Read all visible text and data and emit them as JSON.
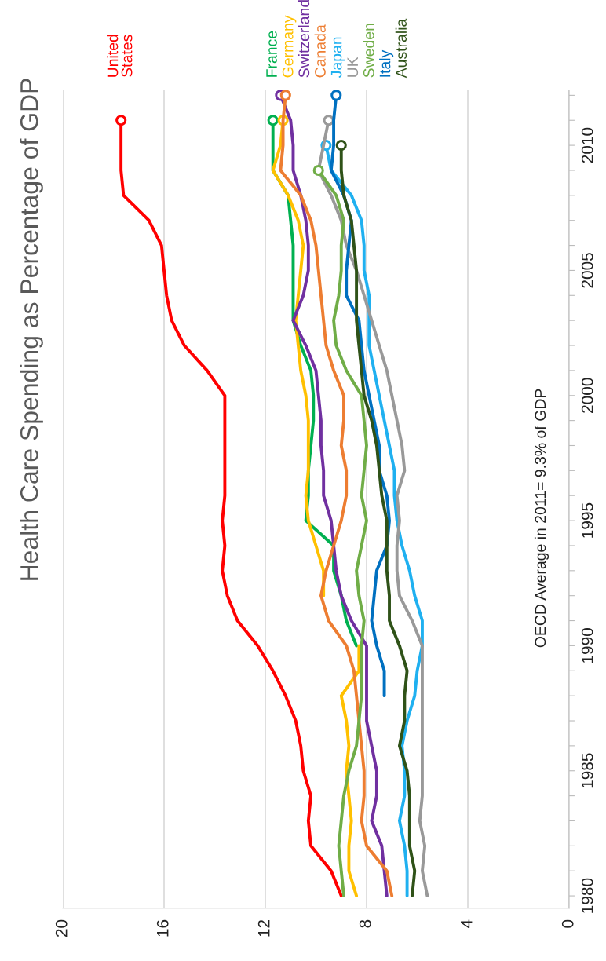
{
  "chart_data": {
    "type": "line",
    "title": "Health Care Spending as Percentage of GDP",
    "annotations": [
      "OECD Average in 2011= 9.3% of GDP"
    ],
    "orientation": "horizontal",
    "ylim": [
      1979.5,
      2012.2
    ],
    "yticks": [
      1980,
      {
        "value": 1981,
        "label": null
      },
      {
        "value": 1982,
        "label": null
      },
      {
        "value": 1983,
        "label": null
      },
      {
        "value": 1984,
        "label": null
      },
      1985,
      {
        "value": 1986,
        "label": null
      },
      {
        "value": 1987,
        "label": null
      },
      {
        "value": 1988,
        "label": null
      },
      {
        "value": 1989,
        "label": null
      },
      1990,
      {
        "value": 1991,
        "label": null
      },
      {
        "value": 1992,
        "label": null
      },
      {
        "value": 1993,
        "label": null
      },
      {
        "value": 1994,
        "label": null
      },
      1995,
      {
        "value": 1996,
        "label": null
      },
      {
        "value": 1997,
        "label": null
      },
      {
        "value": 1998,
        "label": null
      },
      {
        "value": 1999,
        "label": null
      },
      2000,
      {
        "value": 2001,
        "label": null
      },
      {
        "value": 2002,
        "label": null
      },
      {
        "value": 2003,
        "label": null
      },
      {
        "value": 2004,
        "label": null
      },
      2005,
      {
        "value": 2006,
        "label": null
      },
      {
        "value": 2007,
        "label": null
      },
      {
        "value": 2008,
        "label": null
      },
      {
        "value": 2009,
        "label": null
      },
      2010,
      {
        "value": 2011,
        "label": null
      },
      {
        "value": 2012,
        "label": null
      }
    ],
    "xlim": [
      20,
      0
    ],
    "xticks": [
      0,
      4,
      8,
      12,
      16,
      20
    ],
    "grid": "x",
    "legend": false,
    "line_style": "solid",
    "series": [
      {
        "name": "United\nStates",
        "color": "#ff0000",
        "x": [
          1980,
          1981,
          1982,
          1983,
          1984,
          1985,
          1986,
          1987,
          1988,
          1989,
          1990,
          1991,
          1992,
          1993,
          1994,
          1995,
          1996,
          1997,
          1998,
          1999,
          2000,
          2001,
          2002,
          2003,
          2004,
          2005,
          2006,
          2007,
          2008,
          2009,
          2010,
          2011
        ],
        "values": [
          9.0,
          9.4,
          10.2,
          10.3,
          10.2,
          10.5,
          10.6,
          10.8,
          11.2,
          11.7,
          12.3,
          13.1,
          13.5,
          13.7,
          13.6,
          13.7,
          13.6,
          13.6,
          13.6,
          13.6,
          13.6,
          14.3,
          15.2,
          15.7,
          15.9,
          16.0,
          16.1,
          16.6,
          17.6,
          17.7,
          17.7,
          17.7
        ]
      },
      {
        "name": "France",
        "color": "#00b050",
        "x": [
          1990,
          1991,
          1992,
          1993,
          1994,
          1995,
          1996,
          1997,
          1998,
          1999,
          2000,
          2001,
          2002,
          2003,
          2004,
          2005,
          2006,
          2007,
          2008,
          2009,
          2010,
          2011
        ],
        "values": [
          8.4,
          8.8,
          9.0,
          9.3,
          9.3,
          10.4,
          10.3,
          10.3,
          10.2,
          10.1,
          10.1,
          10.2,
          10.6,
          10.9,
          10.9,
          10.9,
          10.9,
          11.0,
          11.1,
          11.7,
          11.7,
          11.7
        ]
      },
      {
        "name": "Germany",
        "color": "#ffc000",
        "x": [
          1980,
          1981,
          1982,
          1983,
          1984,
          1985,
          1986,
          1987,
          1988,
          1989,
          1990,
          1991,
          1992,
          1993,
          1994,
          1995,
          1996,
          1997,
          1998,
          1999,
          2000,
          2001,
          2002,
          2003,
          2004,
          2005,
          2006,
          2007,
          2008,
          2009,
          2010,
          2011
        ],
        "values": [
          8.4,
          8.7,
          8.7,
          8.6,
          8.7,
          8.8,
          8.7,
          8.8,
          9.0,
          8.3,
          8.3,
          null,
          9.7,
          9.7,
          10.0,
          10.3,
          10.4,
          10.3,
          10.3,
          10.3,
          10.4,
          10.6,
          10.7,
          10.8,
          10.7,
          10.6,
          10.5,
          10.7,
          11.1,
          11.7,
          11.4,
          11.3
        ]
      },
      {
        "name": "Switzerland",
        "color": "#7030a0",
        "x": [
          1980,
          1981,
          1982,
          1983,
          1984,
          1985,
          1986,
          1987,
          1988,
          1989,
          1990,
          1991,
          1992,
          1993,
          1994,
          1995,
          1996,
          1997,
          1998,
          1999,
          2000,
          2001,
          2002,
          2003,
          2004,
          2005,
          2006,
          2007,
          2008,
          2009,
          2010,
          2011,
          2012
        ],
        "values": [
          7.2,
          7.3,
          7.4,
          7.8,
          7.6,
          7.6,
          7.8,
          8.0,
          8.0,
          8.0,
          8.0,
          8.6,
          9.0,
          9.2,
          9.3,
          9.4,
          9.7,
          9.7,
          9.8,
          9.8,
          9.9,
          10.0,
          10.4,
          10.9,
          10.5,
          10.3,
          10.3,
          10.4,
          10.6,
          10.9,
          10.9,
          11.0,
          11.4
        ]
      },
      {
        "name": "Canada",
        "color": "#ed7d31",
        "x": [
          1980,
          1981,
          1982,
          1983,
          1984,
          1985,
          1986,
          1987,
          1988,
          1989,
          1990,
          1991,
          1992,
          1993,
          1994,
          1995,
          1996,
          1997,
          1998,
          1999,
          2000,
          2001,
          2002,
          2003,
          2004,
          2005,
          2006,
          2007,
          2008,
          2009,
          2010,
          2011,
          2012
        ],
        "values": [
          7.0,
          7.2,
          8.0,
          8.2,
          8.1,
          8.1,
          8.2,
          8.3,
          8.4,
          8.5,
          8.8,
          9.5,
          9.8,
          9.6,
          9.3,
          9.0,
          8.8,
          8.8,
          9.0,
          8.9,
          8.9,
          9.3,
          9.6,
          9.7,
          9.8,
          9.9,
          10.0,
          10.2,
          10.6,
          11.4,
          11.3,
          11.3,
          11.2
        ]
      },
      {
        "name": "Japan",
        "color": "#1fb0f0",
        "x": [
          1980,
          1981,
          1982,
          1983,
          1984,
          1985,
          1986,
          1987,
          1988,
          1989,
          1990,
          1991,
          1992,
          1993,
          1994,
          1995,
          1996,
          1997,
          1998,
          1999,
          2000,
          2001,
          2002,
          2003,
          2004,
          2005,
          2006,
          2007,
          2008,
          2009,
          2010
        ],
        "values": [
          6.4,
          6.4,
          6.5,
          6.7,
          6.5,
          6.5,
          6.6,
          6.4,
          6.1,
          6.0,
          5.8,
          5.8,
          6.1,
          6.3,
          6.6,
          6.8,
          6.9,
          6.9,
          7.1,
          7.3,
          7.5,
          7.7,
          7.9,
          7.9,
          7.9,
          8.1,
          8.1,
          8.2,
          8.6,
          9.4,
          9.6
        ]
      },
      {
        "name": "UK",
        "color": "#999999",
        "x": [
          1980,
          1981,
          1982,
          1983,
          1984,
          1985,
          1986,
          1987,
          1988,
          1989,
          1990,
          1991,
          1992,
          1993,
          1994,
          1995,
          1996,
          1997,
          1998,
          1999,
          2000,
          2001,
          2002,
          2003,
          2004,
          2005,
          2006,
          2007,
          2008,
          2009,
          2010,
          2011
        ],
        "values": [
          5.6,
          5.8,
          5.7,
          5.9,
          5.8,
          5.8,
          5.8,
          5.8,
          5.8,
          5.8,
          5.8,
          6.2,
          6.7,
          6.8,
          6.8,
          6.7,
          6.8,
          6.5,
          6.6,
          6.8,
          7.0,
          7.2,
          7.5,
          7.8,
          8.1,
          8.4,
          8.8,
          9.0,
          9.4,
          9.9,
          9.7,
          9.5
        ]
      },
      {
        "name": "Sweden",
        "color": "#70ad47",
        "x": [
          1980,
          1981,
          1982,
          1983,
          1984,
          1985,
          1986,
          1987,
          1988,
          1989,
          1990,
          1991,
          1992,
          1993,
          1994,
          1995,
          1996,
          1997,
          1998,
          1999,
          2000,
          2001,
          2002,
          2003,
          2004,
          2005,
          2006,
          2007,
          2008,
          2009
        ],
        "values": [
          8.9,
          9.0,
          9.1,
          9.0,
          8.9,
          8.7,
          8.4,
          8.3,
          8.2,
          8.2,
          8.2,
          8.1,
          8.3,
          8.4,
          8.2,
          8.0,
          8.2,
          8.1,
          8.0,
          8.1,
          8.2,
          8.8,
          9.2,
          9.3,
          9.1,
          9.0,
          9.0,
          8.9,
          9.2,
          9.9
        ]
      },
      {
        "name": "Italy",
        "color": "#0070c0",
        "x": [
          1988,
          1989,
          1990,
          1991,
          1992,
          1993,
          1994,
          1995,
          1996,
          1997,
          1998,
          1999,
          2000,
          2001,
          2002,
          2003,
          2004,
          2005,
          2006,
          2007,
          2008,
          2009,
          2010,
          2011,
          2012
        ],
        "values": [
          7.3,
          7.3,
          7.6,
          7.8,
          7.7,
          7.6,
          7.2,
          7.1,
          7.2,
          7.5,
          7.5,
          7.7,
          7.9,
          8.1,
          8.2,
          8.3,
          8.8,
          8.8,
          8.7,
          8.6,
          8.9,
          9.4,
          9.3,
          9.3,
          9.2
        ]
      },
      {
        "name": "Australia",
        "color": "#2f5218",
        "x": [
          1980,
          1981,
          1982,
          1983,
          1984,
          1985,
          1986,
          1987,
          1988,
          1989,
          1990,
          1991,
          1992,
          1993,
          1994,
          1995,
          1996,
          1997,
          1998,
          1999,
          2000,
          2001,
          2002,
          2003,
          2004,
          2005,
          2006,
          2007,
          2008,
          2009,
          2010
        ],
        "values": [
          6.2,
          6.1,
          6.3,
          6.3,
          6.3,
          6.4,
          6.7,
          6.5,
          6.5,
          6.4,
          6.7,
          7.1,
          7.1,
          7.2,
          7.2,
          7.2,
          7.4,
          7.5,
          7.6,
          7.8,
          8.1,
          8.2,
          8.3,
          8.4,
          8.4,
          8.4,
          8.5,
          8.6,
          8.9,
          9.0,
          9.0
        ]
      }
    ]
  }
}
